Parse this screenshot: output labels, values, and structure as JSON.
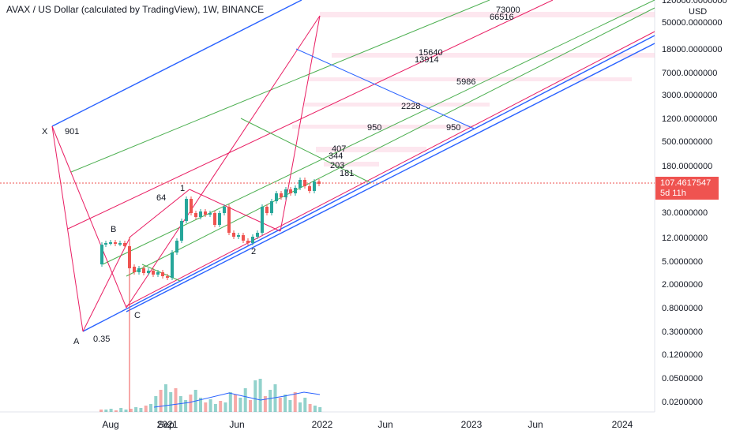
{
  "header": {
    "title": "AVAX / US Dollar (calculated by TradingView), 1W, BINANCE"
  },
  "price_axis": {
    "currency": "USD",
    "labels": [
      "120000.0000000",
      "50000.0000000",
      "18000.0000000",
      "7000.0000000",
      "3000.0000000",
      "1200.0000000",
      "500.0000000",
      "180.0000000",
      "30.0000000",
      "12.0000000",
      "5.0000000",
      "2.0000000",
      "0.8000000",
      "0.3000000",
      "0.1200000",
      "0.0500000",
      "0.0200000"
    ]
  },
  "time_axis": {
    "labels": [
      "Aug",
      "Sep",
      "2021",
      "Jun",
      "2022",
      "Jun",
      "2023",
      "Jun",
      "2024"
    ]
  },
  "last_price": {
    "value": "107.4617547",
    "countdown": "5d 11h"
  },
  "annotations": [
    "X",
    "901",
    "B",
    "A",
    "0.35",
    "C",
    "64",
    "1",
    "2",
    "73000",
    "66516",
    "15640",
    "13914",
    "5986",
    "2228",
    "950",
    "950",
    "407",
    "344",
    "203",
    "181"
  ],
  "colors": {
    "up": "#26a69a",
    "down": "#ef5350",
    "pitchfork_blue": "#2962ff",
    "pitchfork_green": "#4caf50",
    "pitchfork_red": "#e91e63",
    "volume_ma": "#2962ff"
  },
  "chart_data": {
    "type": "candlestick",
    "symbol": "AVAX / US Dollar (calculated by TradingView)",
    "interval": "1W",
    "exchange": "BINANCE",
    "scale": "log",
    "y_unit": "USD",
    "x_start": "2020-09",
    "x_end": "2022-01",
    "last_price": 107.4617547,
    "approx_weekly_closes": [
      {
        "period": "2020-09",
        "close": 5.5
      },
      {
        "period": "2020-10",
        "close": 4.2
      },
      {
        "period": "2020-11",
        "close": 3.4
      },
      {
        "period": "2020-12",
        "close": 3.0
      },
      {
        "period": "2021-01",
        "close": 8.0
      },
      {
        "period": "2021-02",
        "close": 45
      },
      {
        "period": "2021-03",
        "close": 38
      },
      {
        "period": "2021-04",
        "close": 32
      },
      {
        "period": "2021-05",
        "close": 34
      },
      {
        "period": "2021-06",
        "close": 15
      },
      {
        "period": "2021-07",
        "close": 12
      },
      {
        "period": "2021-08",
        "close": 42
      },
      {
        "period": "2021-09",
        "close": 75
      },
      {
        "period": "2021-10",
        "close": 70
      },
      {
        "period": "2021-11",
        "close": 115
      },
      {
        "period": "2021-12",
        "close": 110
      },
      {
        "period": "2022-01",
        "close": 107.46
      }
    ]
  }
}
